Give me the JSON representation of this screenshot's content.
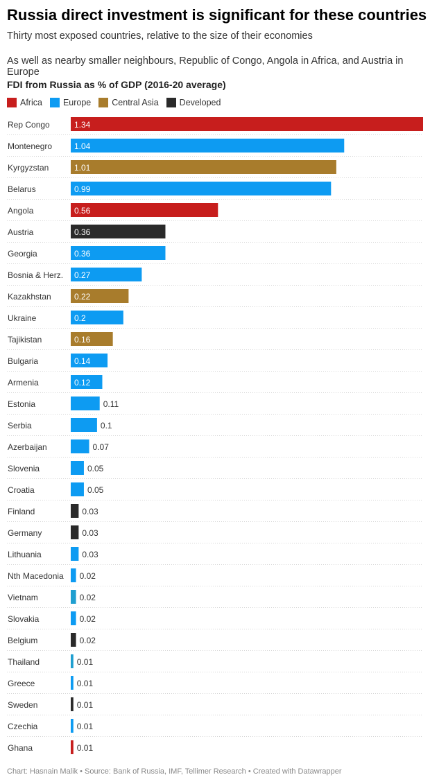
{
  "header": {
    "title": "Russia direct investment is significant for these countries",
    "subtitle1": "Thirty most exposed countries, relative to the size of their economies",
    "subtitle2": "As well as nearby smaller neighbours, Republic of Congo, Angola in Africa, and Austria in Europe"
  },
  "footer": {
    "text": "Chart: Hasnain Malik • Source: Bank of Russia, IMF, Tellimer Research • Created with Datawrapper"
  },
  "colors": {
    "Africa": "#c71e1d",
    "Europe": "#0d9bf2",
    "Central Asia": "#a87c2c",
    "Developed": "#2a2a2a",
    "Asia": "#1f9fd0"
  },
  "chart_data": {
    "type": "bar",
    "orientation": "horizontal",
    "title": "FDI from Russia as % of GDP (2016-20 average)",
    "legend": [
      {
        "name": "Africa",
        "color": "#c71e1d"
      },
      {
        "name": "Europe",
        "color": "#0d9bf2"
      },
      {
        "name": "Central Asia",
        "color": "#a87c2c"
      },
      {
        "name": "Developed",
        "color": "#2a2a2a"
      }
    ],
    "legend_position": "top-left",
    "xlim": [
      0,
      1.34
    ],
    "grid": false,
    "categories": [
      "Rep Congo",
      "Montenegro",
      "Kyrgyzstan",
      "Belarus",
      "Angola",
      "Austria",
      "Georgia",
      "Bosnia & Herz.",
      "Kazakhstan",
      "Ukraine",
      "Tajikistan",
      "Bulgaria",
      "Armenia",
      "Estonia",
      "Serbia",
      "Azerbaijan",
      "Slovenia",
      "Croatia",
      "Finland",
      "Germany",
      "Lithuania",
      "Nth Macedonia",
      "Vietnam",
      "Slovakia",
      "Belgium",
      "Thailand",
      "Greece",
      "Sweden",
      "Czechia",
      "Ghana"
    ],
    "values": [
      1.34,
      1.04,
      1.01,
      0.99,
      0.56,
      0.36,
      0.36,
      0.27,
      0.22,
      0.2,
      0.16,
      0.14,
      0.12,
      0.11,
      0.1,
      0.07,
      0.05,
      0.05,
      0.03,
      0.03,
      0.03,
      0.02,
      0.02,
      0.02,
      0.02,
      0.01,
      0.01,
      0.01,
      0.01,
      0.01
    ],
    "value_labels": [
      "1.34",
      "1.04",
      "1.01",
      "0.99",
      "0.56",
      "0.36",
      "0.36",
      "0.27",
      "0.22",
      "0.2",
      "0.16",
      "0.14",
      "0.12",
      "0.11",
      "0.1",
      "0.07",
      "0.05",
      "0.05",
      "0.03",
      "0.03",
      "0.03",
      "0.02",
      "0.02",
      "0.02",
      "0.02",
      "0.01",
      "0.01",
      "0.01",
      "0.01",
      "0.01"
    ],
    "groups": [
      "Africa",
      "Europe",
      "Central Asia",
      "Europe",
      "Africa",
      "Developed",
      "Europe",
      "Europe",
      "Central Asia",
      "Europe",
      "Central Asia",
      "Europe",
      "Europe",
      "Europe",
      "Europe",
      "Europe",
      "Europe",
      "Europe",
      "Developed",
      "Developed",
      "Europe",
      "Europe",
      "Asia",
      "Europe",
      "Developed",
      "Asia",
      "Europe",
      "Developed",
      "Europe",
      "Africa"
    ]
  }
}
